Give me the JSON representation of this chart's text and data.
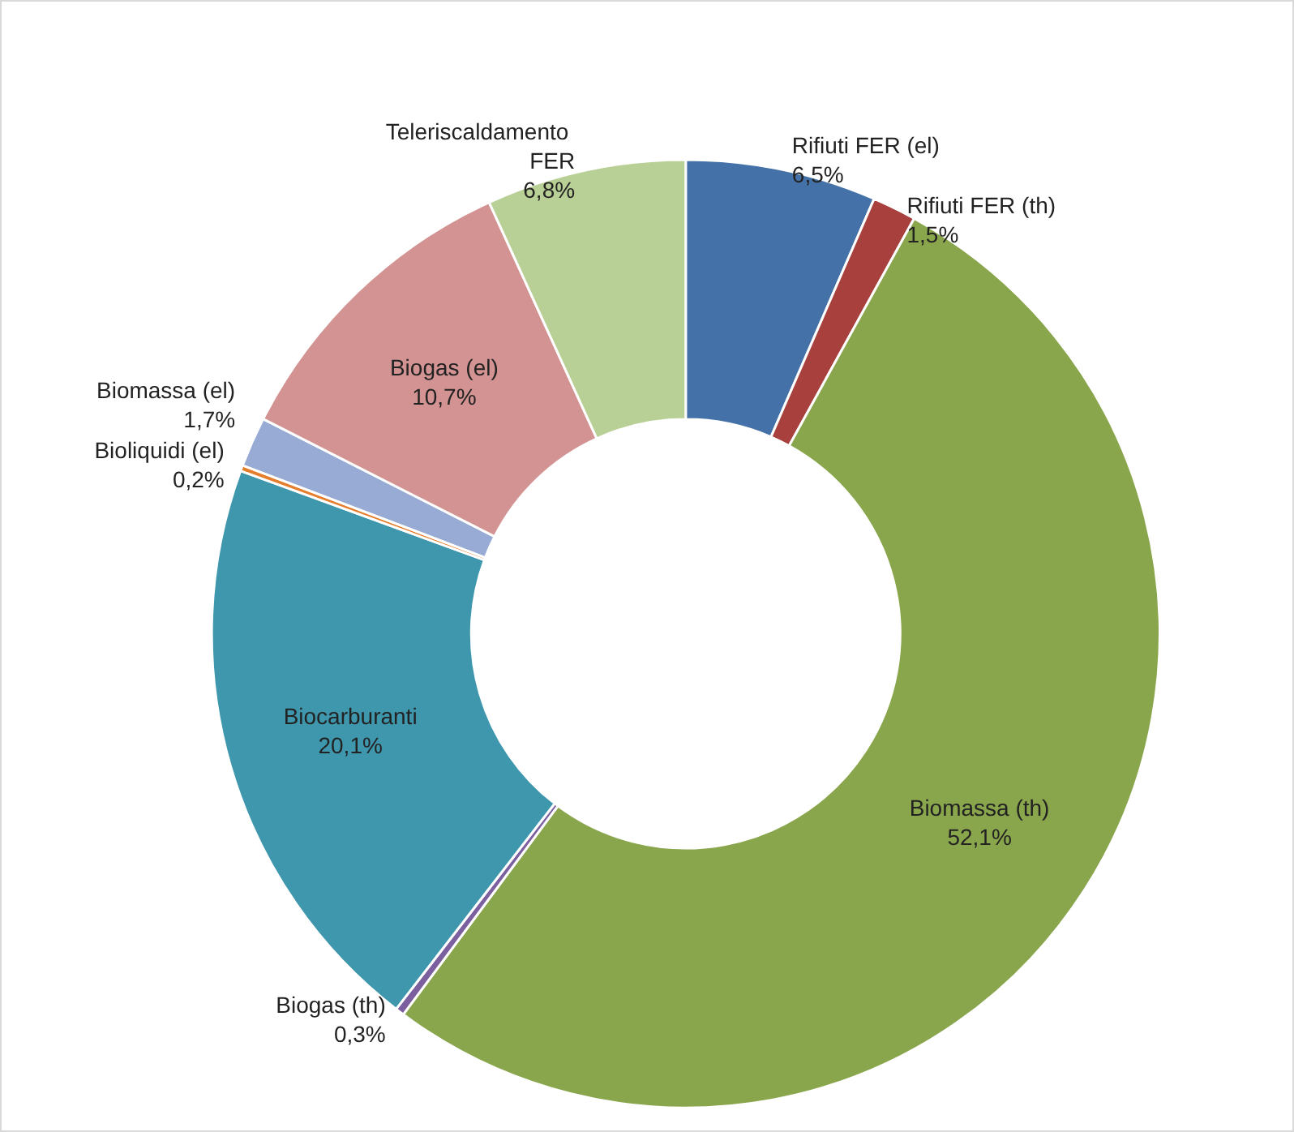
{
  "chart_data": {
    "type": "donut",
    "categories": [
      "Rifiuti FER (el)",
      "Rifiuti FER (th)",
      "Biomassa (th)",
      "Biogas (th)",
      "Biocarburanti",
      "Bioliquidi (el)",
      "Biomassa (el)",
      "Biogas (el)",
      "Teleriscaldamento FER"
    ],
    "values": [
      6.5,
      1.5,
      52.1,
      0.3,
      20.1,
      0.2,
      1.7,
      10.7,
      6.8
    ],
    "value_labels": [
      "6,5%",
      "1,5%",
      "52,1%",
      "0,3%",
      "20,1%",
      "0,2%",
      "1,7%",
      "10,7%",
      "6,8%"
    ],
    "colors": [
      "#4471a7",
      "#a8403d",
      "#8aa64c",
      "#7c5f9e",
      "#3f97ae",
      "#e47d2c",
      "#97abd5",
      "#d29392",
      "#b8cf95"
    ],
    "legend": false
  }
}
